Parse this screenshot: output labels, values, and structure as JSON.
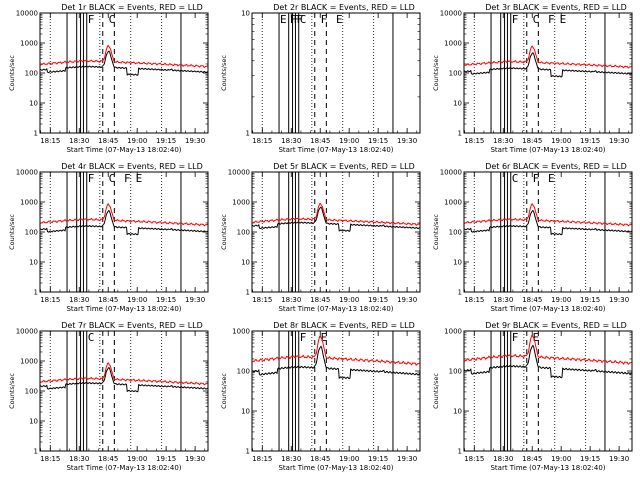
{
  "figure": {
    "x_ticks": [
      "18:15",
      "18:30",
      "18:45",
      "19:00",
      "19:15",
      "19:30"
    ],
    "y_tick_labels": [
      "1",
      "10",
      "100",
      "1000",
      "10000"
    ],
    "y_tick_labels_small": [
      "1",
      "10"
    ],
    "ylabel": "Counts/sec",
    "xlabel": "Start Time (07-May-13 18:02:40)",
    "legend_text": "BLACK = Events, RED = LLD"
  },
  "chart_data": [
    {
      "type": "line",
      "title": "Det 1r",
      "flags": [
        "F",
        "C"
      ],
      "ylim": [
        1,
        10000
      ],
      "has_data": true,
      "base": 220,
      "event_ratio": 0.65,
      "series": [
        {
          "name": "Events",
          "color": "#000000"
        },
        {
          "name": "LLD",
          "color": "#ff0000"
        }
      ]
    },
    {
      "type": "line",
      "title": "Det 2r",
      "flags": [
        "E",
        "F",
        "F",
        "F",
        "C",
        "F",
        "E"
      ],
      "ylim": [
        1,
        10
      ],
      "has_data": false,
      "base": 0,
      "event_ratio": 0,
      "series": [
        {
          "name": "Events",
          "color": "#000000"
        },
        {
          "name": "LLD",
          "color": "#ff0000"
        }
      ]
    },
    {
      "type": "line",
      "title": "Det 3r",
      "flags": [
        "F",
        "C",
        "F",
        "E"
      ],
      "ylim": [
        1,
        10000
      ],
      "has_data": true,
      "base": 210,
      "event_ratio": 0.6,
      "series": [
        {
          "name": "Events",
          "color": "#000000"
        },
        {
          "name": "LLD",
          "color": "#ff0000"
        }
      ]
    },
    {
      "type": "line",
      "title": "Det 4r",
      "flags": [
        "F",
        "C",
        "F",
        "E"
      ],
      "ylim": [
        1,
        10000
      ],
      "has_data": true,
      "base": 230,
      "event_ratio": 0.6,
      "series": [
        {
          "name": "Events",
          "color": "#000000"
        },
        {
          "name": "LLD",
          "color": "#ff0000"
        }
      ]
    },
    {
      "type": "line",
      "title": "Det 5r",
      "flags": [],
      "ylim": [
        1,
        10000
      ],
      "has_data": true,
      "base": 240,
      "event_ratio": 0.75,
      "series": [
        {
          "name": "Events",
          "color": "#000000"
        },
        {
          "name": "LLD",
          "color": "#ff0000"
        }
      ]
    },
    {
      "type": "line",
      "title": "Det 6r",
      "flags": [
        "C",
        "F",
        "E"
      ],
      "ylim": [
        1,
        10000
      ],
      "has_data": true,
      "base": 230,
      "event_ratio": 0.6,
      "series": [
        {
          "name": "Events",
          "color": "#000000"
        },
        {
          "name": "LLD",
          "color": "#ff0000"
        }
      ]
    },
    {
      "type": "line",
      "title": "Det 7r",
      "flags": [
        "C"
      ],
      "ylim": [
        1,
        10000
      ],
      "has_data": true,
      "base": 230,
      "event_ratio": 0.7,
      "series": [
        {
          "name": "Events",
          "color": "#000000"
        },
        {
          "name": "LLD",
          "color": "#ff0000"
        }
      ]
    },
    {
      "type": "line",
      "title": "Det 8r",
      "flags": [
        "F",
        "E"
      ],
      "ylim": [
        1,
        1000
      ],
      "has_data": true,
      "base": 200,
      "event_ratio": 0.55,
      "series": [
        {
          "name": "Events",
          "color": "#000000"
        },
        {
          "name": "LLD",
          "color": "#ff0000"
        }
      ]
    },
    {
      "type": "line",
      "title": "Det 9r",
      "flags": [
        "F",
        "E"
      ],
      "ylim": [
        1,
        1000
      ],
      "has_data": true,
      "base": 210,
      "event_ratio": 0.55,
      "series": [
        {
          "name": "Events",
          "color": "#000000"
        },
        {
          "name": "LLD",
          "color": "#ff0000"
        }
      ]
    }
  ]
}
